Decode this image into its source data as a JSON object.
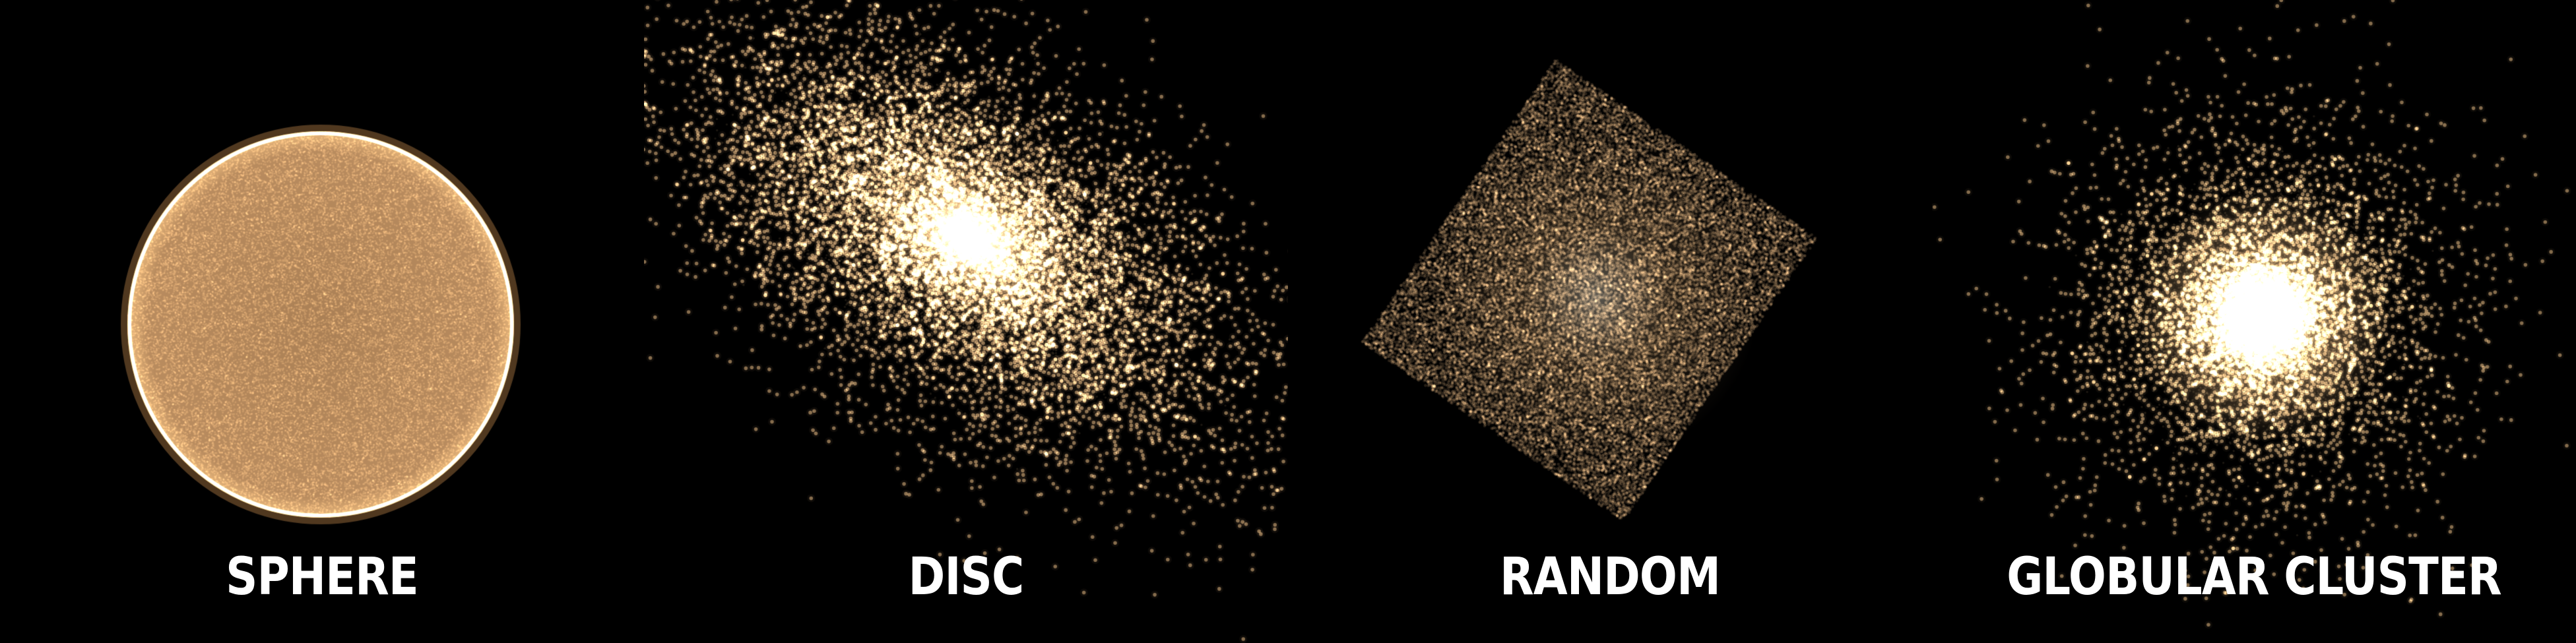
{
  "panels": [
    {
      "id": "sphere",
      "label": "SPHERE"
    },
    {
      "id": "disc",
      "label": "DISC"
    },
    {
      "id": "random",
      "label": "RANDOM"
    },
    {
      "id": "globular",
      "label": "GLOBULAR CLUSTER"
    }
  ],
  "colors": {
    "background": "#000000",
    "particle": "#f2c38a",
    "core": "#fff6e2",
    "label": "#ffffff"
  }
}
